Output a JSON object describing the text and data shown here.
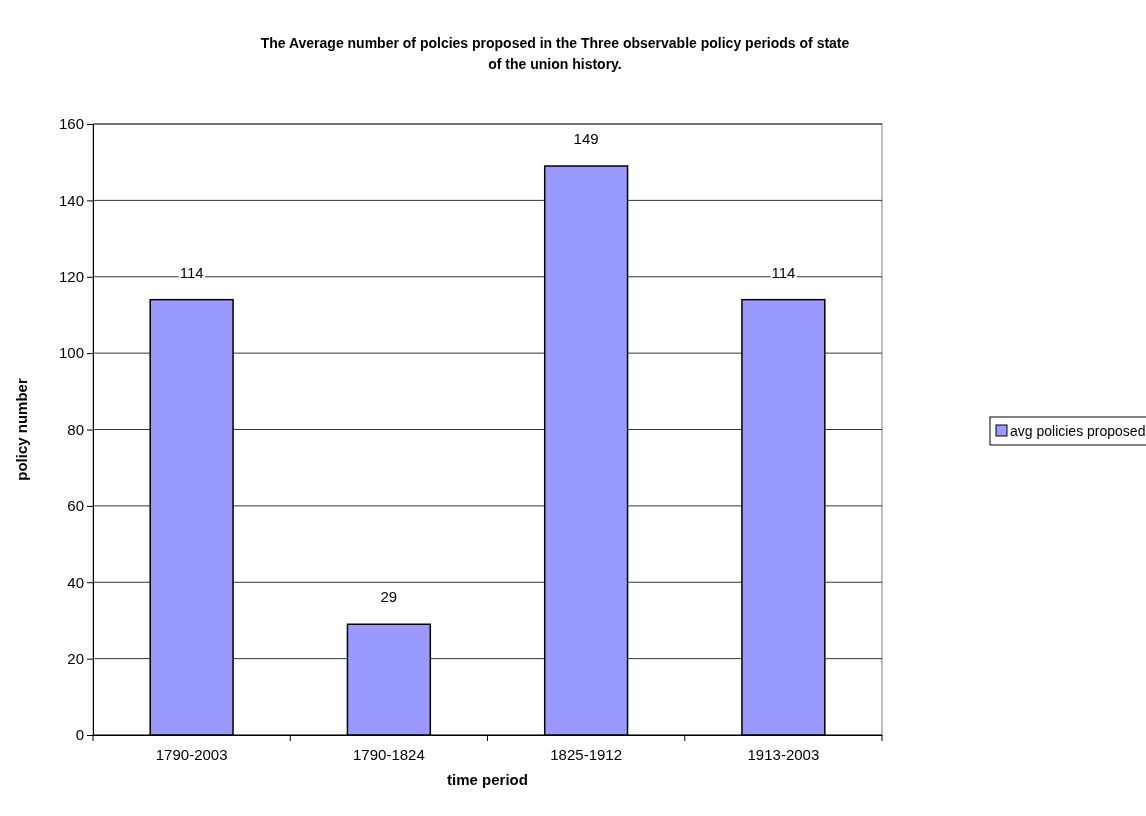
{
  "chart_data": {
    "type": "bar",
    "title": "The Average number of polcies proposed in the Three observable policy periods of state of the union history.",
    "xlabel": "time period",
    "ylabel": "policy number",
    "categories": [
      "1790-2003",
      "1790-1824",
      "1825-1912",
      "1913-2003"
    ],
    "series": [
      {
        "name": "avg policies proposed",
        "color": "#9999ff",
        "values": [
          114,
          29,
          149,
          114
        ]
      }
    ],
    "ylim": [
      0,
      160
    ],
    "yticks": [
      0,
      20,
      40,
      60,
      80,
      100,
      120,
      140,
      160
    ],
    "grid": "y",
    "legend": "right",
    "data_labels": true
  }
}
